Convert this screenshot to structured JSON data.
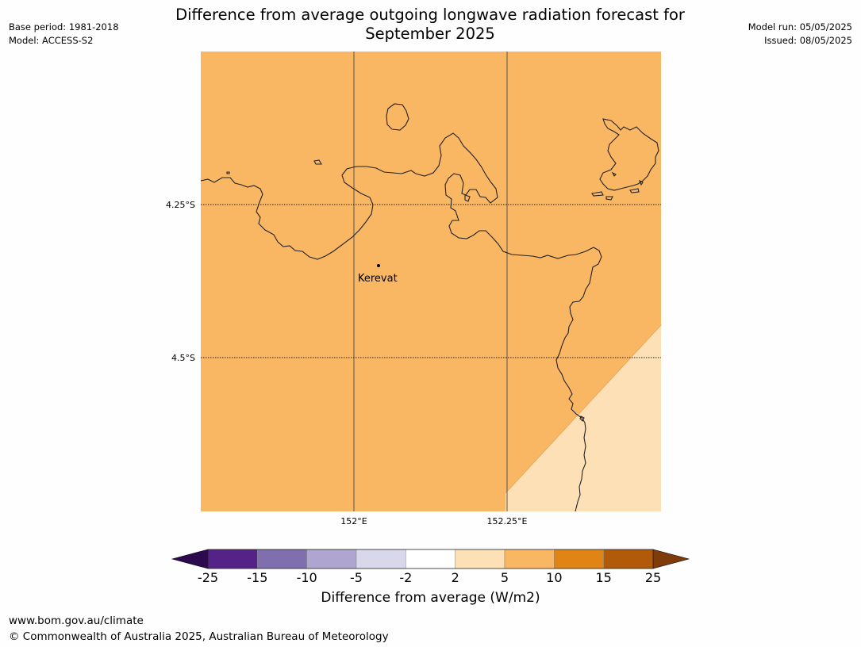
{
  "title": {
    "line1": "Difference from average outgoing longwave radiation forecast for",
    "line2": "September 2025"
  },
  "meta": {
    "base_period": "Base period: 1981-2018",
    "model": "Model: ACCESS-S2",
    "model_run": "Model run: 05/05/2025",
    "issued": "Issued: 08/05/2025"
  },
  "map": {
    "lat_labels": [
      "4.25°S",
      "4.5°S"
    ],
    "lon_labels": [
      "152°E",
      "152.25°E"
    ],
    "place_label": "Kerevat",
    "main_fill_color": "#f9b663",
    "light_fill_color": "#fde0b6",
    "coast_color": "#222222"
  },
  "colorbar": {
    "label": "Difference from average (W/m2)",
    "ticks": [
      "-25",
      "-15",
      "-10",
      "-5",
      "-2",
      "2",
      "5",
      "10",
      "15",
      "25"
    ],
    "colors": [
      "#552288",
      "#7f6fae",
      "#aea6d0",
      "#d8d8ea",
      "#ffffff",
      "#fde0b6",
      "#f9b663",
      "#e08415",
      "#b05a0a"
    ],
    "under_color": "#2d0a4e",
    "over_color": "#7f3b0a"
  },
  "footer": {
    "url": "www.bom.gov.au/climate",
    "copyright": "© Commonwealth of Australia 2025, Australian Bureau of Meteorology"
  }
}
